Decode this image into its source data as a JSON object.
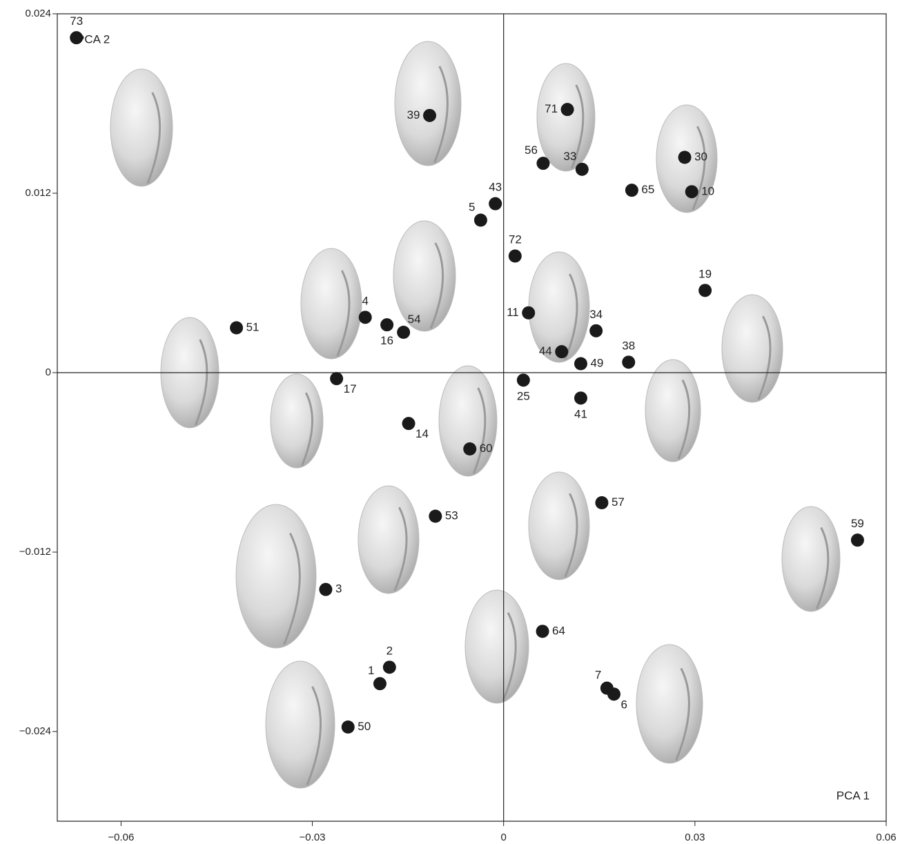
{
  "chart_data": {
    "type": "scatter",
    "x_axis_label": "PCA 1",
    "y_axis_label": "PCA 2",
    "labels": [
      "73",
      "39",
      "71",
      "56",
      "33",
      "30",
      "65",
      "10",
      "43",
      "5",
      "72",
      "19",
      "11",
      "34",
      "4",
      "16",
      "54",
      "51",
      "44",
      "49",
      "38",
      "17",
      "25",
      "41",
      "14",
      "60",
      "57",
      "53",
      "59",
      "3",
      "64",
      "2",
      "1",
      "7",
      "6",
      "50"
    ],
    "x": [
      -0.067,
      -0.0116,
      0.01,
      0.0062,
      0.0123,
      0.0284,
      0.0201,
      0.0295,
      -0.0013,
      -0.0036,
      0.0018,
      0.0316,
      0.0039,
      0.0145,
      -0.0217,
      -0.0183,
      -0.0157,
      -0.0419,
      0.0091,
      0.0121,
      0.0196,
      -0.0262,
      0.0031,
      0.0121,
      -0.0149,
      -0.0053,
      0.0154,
      -0.0107,
      0.0555,
      -0.0279,
      0.0061,
      -0.0179,
      -0.0194,
      0.0162,
      0.0173,
      -0.0244
    ],
    "y": [
      0.0224,
      0.0172,
      0.0176,
      0.014,
      0.0136,
      0.0144,
      0.0122,
      0.0121,
      0.0113,
      0.0102,
      0.0078,
      0.0055,
      0.004,
      0.0028,
      0.0037,
      0.0032,
      0.0027,
      0.003,
      0.0014,
      0.0006,
      0.0007,
      -0.0004,
      -0.0005,
      -0.0017,
      -0.0034,
      -0.0051,
      -0.0087,
      -0.0096,
      -0.0112,
      -0.0145,
      -0.0173,
      -0.0197,
      -0.0208,
      -0.0211,
      -0.0215,
      -0.0237
    ],
    "color": "#1a1a1a",
    "xlim": [
      -0.07,
      0.06
    ],
    "ylim": [
      -0.03,
      0.024
    ],
    "xticks": [
      {
        "value": -0.06,
        "label": "−0.06"
      },
      {
        "value": -0.03,
        "label": "−0.03"
      },
      0,
      0.03,
      0.06
    ],
    "yticks": [
      {
        "value": -0.024,
        "label": "−0.024"
      },
      {
        "value": -0.012,
        "label": "−0.012"
      },
      0,
      0.012,
      0.024
    ]
  }
}
